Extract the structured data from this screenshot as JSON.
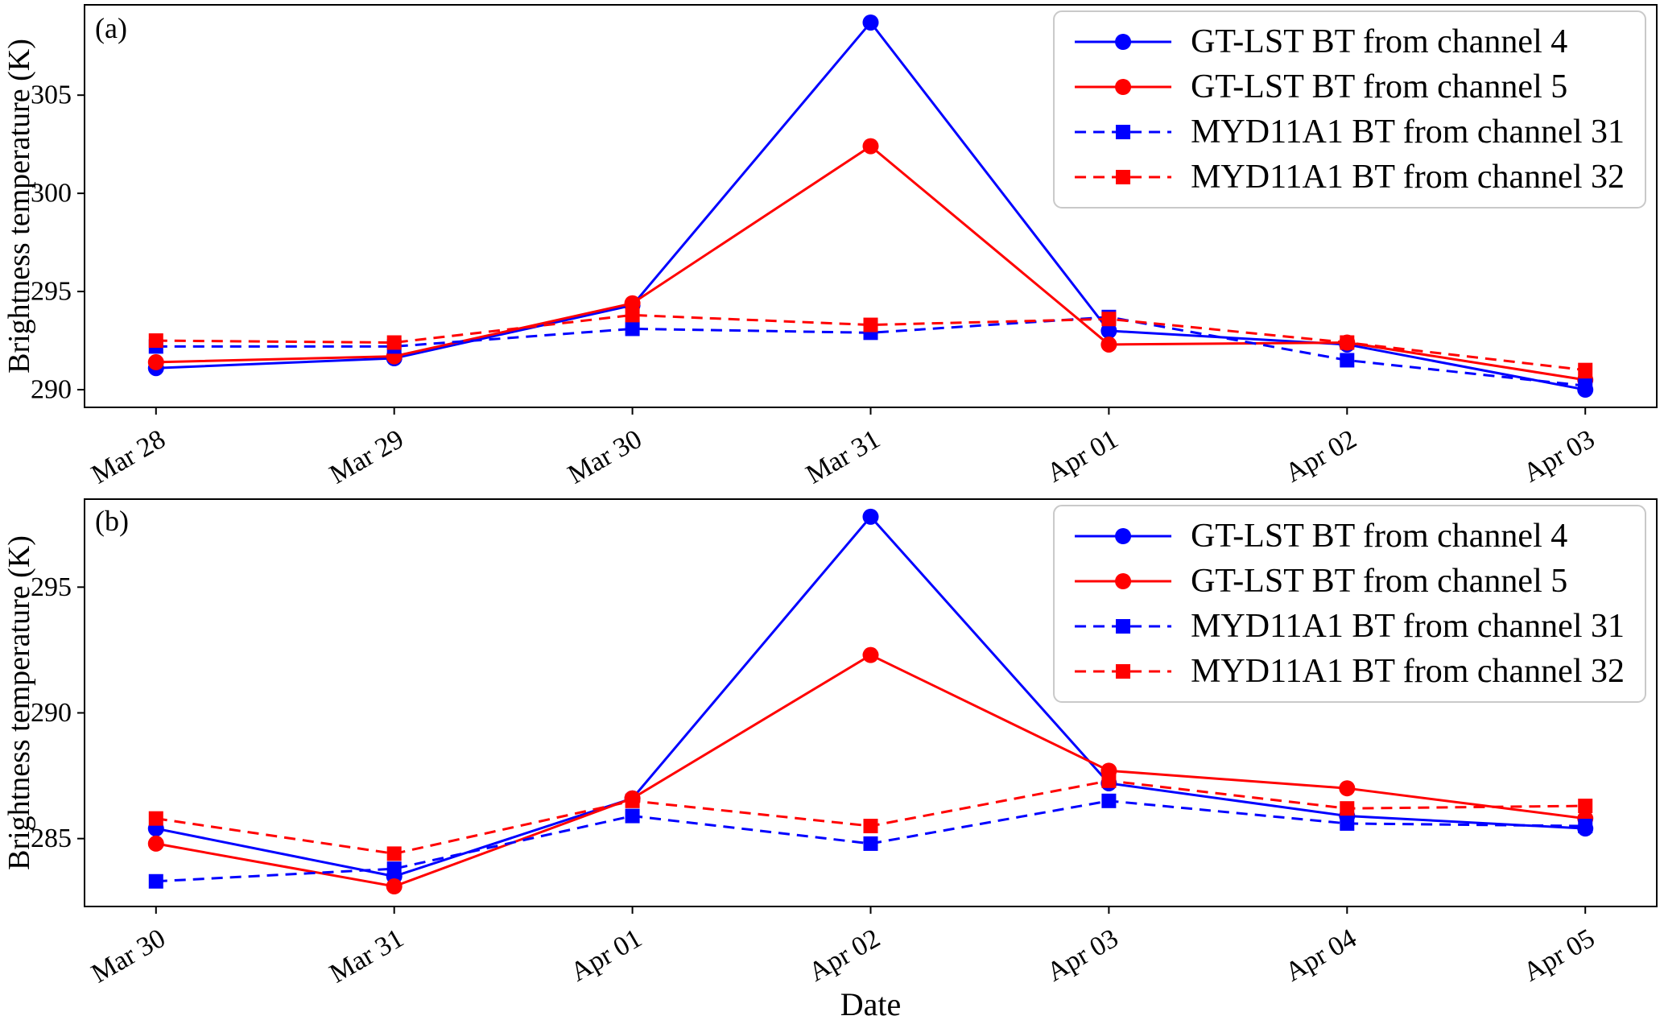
{
  "figure": {
    "background": "#ffffff",
    "axis_color": "#000000"
  },
  "chart_data": [
    {
      "type": "line",
      "panel_label": "(a)",
      "ylabel": "Brightness temperature (K)",
      "xlabel": "",
      "categories": [
        "Mar 28",
        "Mar 29",
        "Mar 30",
        "Mar 31",
        "Apr 01",
        "Apr 02",
        "Apr 03"
      ],
      "yticks": [
        290,
        295,
        300,
        305
      ],
      "ylim": [
        289.1,
        309.6
      ],
      "grid": false,
      "legend_position": "upper right",
      "series": [
        {
          "name": "GT-LST BT from channel 4",
          "color": "#0000ff",
          "line_style": "solid",
          "marker": "circle",
          "values": [
            291.1,
            291.6,
            294.3,
            308.7,
            293.0,
            292.3,
            290.0
          ]
        },
        {
          "name": "GT-LST BT from channel 5",
          "color": "#ff0000",
          "line_style": "solid",
          "marker": "circle",
          "values": [
            291.4,
            291.7,
            294.4,
            302.4,
            292.3,
            292.4,
            290.5
          ]
        },
        {
          "name": "MYD11A1 BT from channel 31",
          "color": "#0000ff",
          "line_style": "dashed",
          "marker": "square",
          "values": [
            292.2,
            292.2,
            293.1,
            292.9,
            293.7,
            291.5,
            290.2
          ]
        },
        {
          "name": "MYD11A1 BT from channel 32",
          "color": "#ff0000",
          "line_style": "dashed",
          "marker": "square",
          "values": [
            292.5,
            292.4,
            293.8,
            293.3,
            293.6,
            292.4,
            291.0
          ]
        }
      ]
    },
    {
      "type": "line",
      "panel_label": "(b)",
      "ylabel": "Brightness temperature (K)",
      "xlabel": "Date",
      "categories": [
        "Mar 30",
        "Mar 31",
        "Apr 01",
        "Apr 02",
        "Apr 03",
        "Apr 04",
        "Apr 05"
      ],
      "yticks": [
        285,
        290,
        295
      ],
      "ylim": [
        282.3,
        298.5
      ],
      "grid": false,
      "legend_position": "upper right",
      "series": [
        {
          "name": "GT-LST BT from channel 4",
          "color": "#0000ff",
          "line_style": "solid",
          "marker": "circle",
          "values": [
            285.4,
            283.5,
            286.6,
            297.8,
            287.2,
            285.9,
            285.4
          ]
        },
        {
          "name": "GT-LST BT from channel 5",
          "color": "#ff0000",
          "line_style": "solid",
          "marker": "circle",
          "values": [
            284.8,
            283.1,
            286.6,
            292.3,
            287.7,
            287.0,
            285.8
          ]
        },
        {
          "name": "MYD11A1 BT from channel 31",
          "color": "#0000ff",
          "line_style": "dashed",
          "marker": "square",
          "values": [
            283.3,
            283.8,
            285.9,
            284.8,
            286.5,
            285.6,
            285.5
          ]
        },
        {
          "name": "MYD11A1 BT from channel 32",
          "color": "#ff0000",
          "line_style": "dashed",
          "marker": "square",
          "values": [
            285.8,
            284.4,
            286.5,
            285.5,
            287.3,
            286.2,
            286.3
          ]
        }
      ]
    }
  ]
}
